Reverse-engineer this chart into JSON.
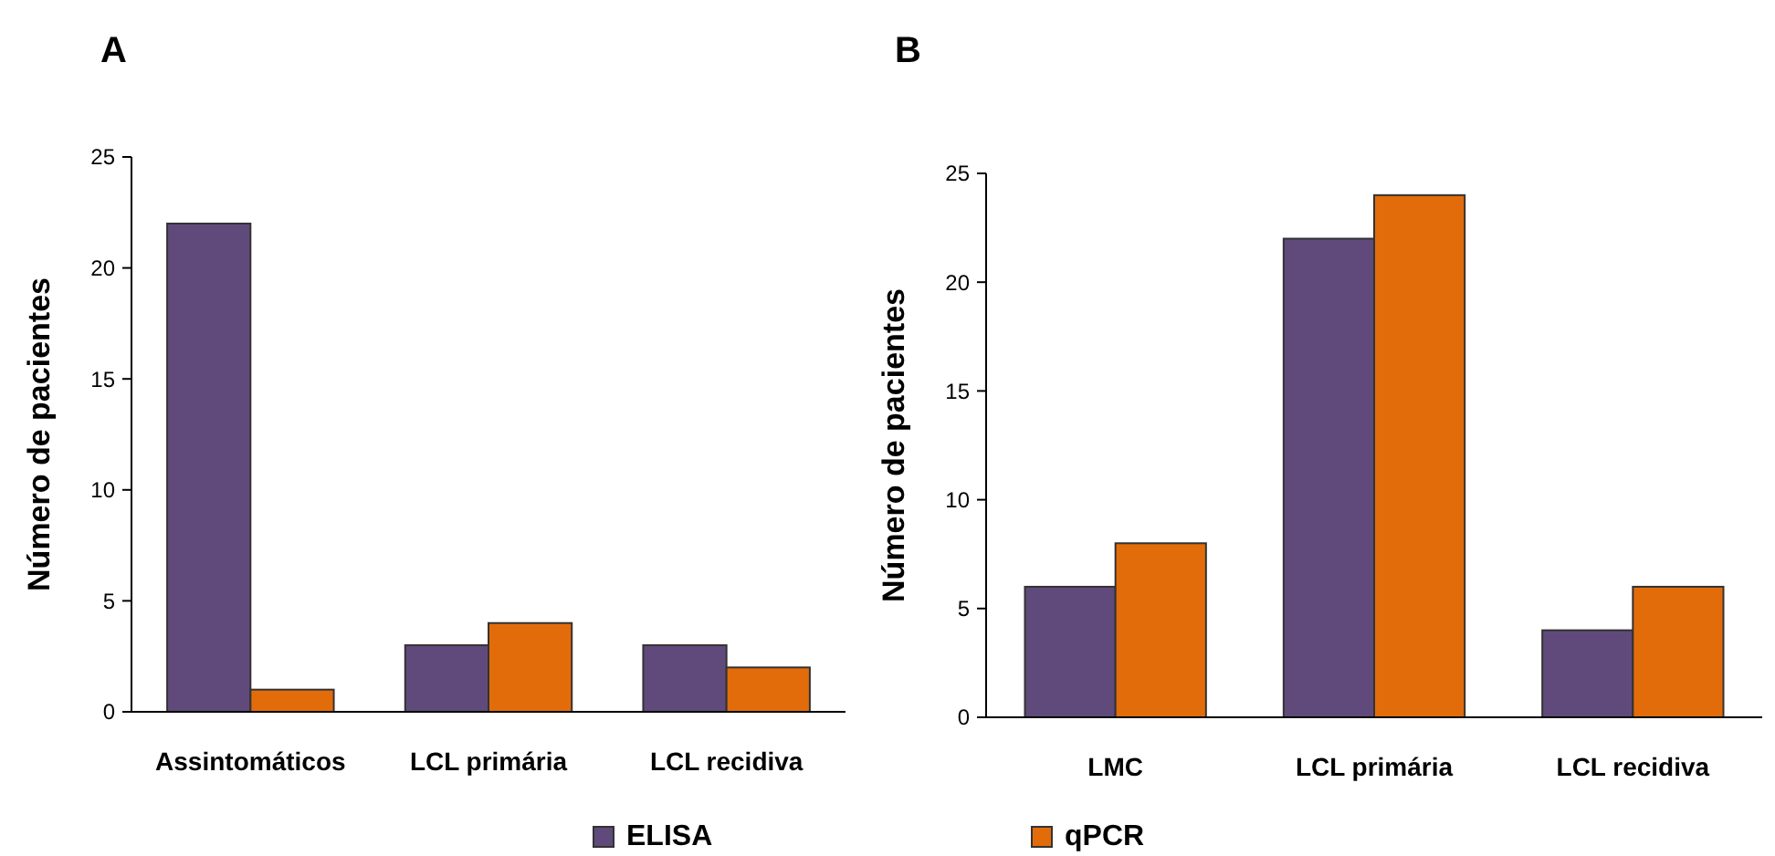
{
  "chart_data": [
    {
      "type": "bar",
      "title": "A",
      "ylabel": "Número de pacientes",
      "categories": [
        "Assintomáticos",
        "LCL primária",
        "LCL recidiva"
      ],
      "series": [
        {
          "name": "ELISA",
          "color": "#604a7b",
          "values": [
            22,
            3,
            3
          ]
        },
        {
          "name": "qPCR",
          "color": "#e36c0a",
          "values": [
            1,
            4,
            2
          ]
        }
      ],
      "ylim": [
        0,
        25
      ],
      "yticks": [
        0,
        5,
        10,
        15,
        20,
        25
      ],
      "grid": false,
      "legend": "bottom"
    },
    {
      "type": "bar",
      "title": "B",
      "ylabel": "Número de pacientes",
      "categories": [
        "LMC",
        "LCL primária",
        "LCL recidiva"
      ],
      "series": [
        {
          "color": "#604a7b",
          "values": [
            6,
            22,
            4
          ]
        },
        {
          "color": "#e36c0a",
          "values": [
            8,
            24,
            6
          ]
        }
      ],
      "ylim": [
        0,
        25
      ],
      "yticks": [
        0,
        5,
        10,
        15,
        20,
        25
      ],
      "grid": false
    }
  ]
}
